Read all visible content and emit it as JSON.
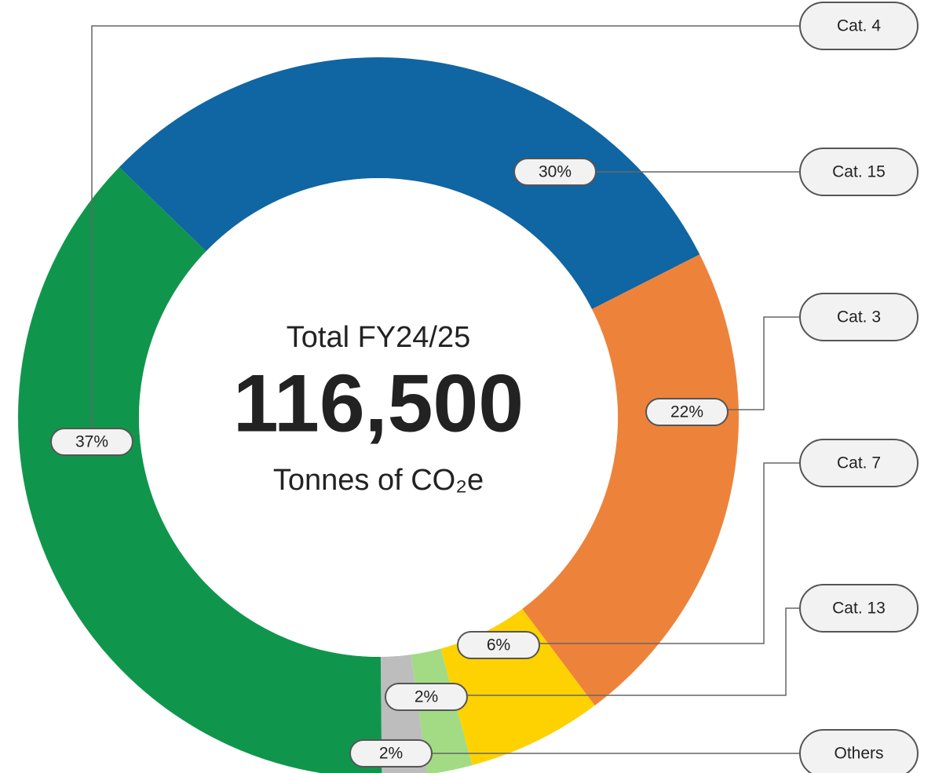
{
  "chart_data": {
    "type": "donut",
    "center_title": "Total FY24/25",
    "center_value": "116,500",
    "center_unit": "Tonnes of CO₂e",
    "categories": [
      "Cat. 15",
      "Cat. 3",
      "Cat. 7",
      "Cat. 13",
      "Others",
      "Cat. 4"
    ],
    "values": [
      30,
      22,
      6,
      2,
      2,
      37
    ],
    "value_labels": [
      "30%",
      "22%",
      "6%",
      "2%",
      "2%",
      "37%"
    ],
    "colors": [
      "#1065a3",
      "#ed833a",
      "#fed200",
      "#a3db84",
      "#bdbdbd",
      "#10964c"
    ]
  }
}
